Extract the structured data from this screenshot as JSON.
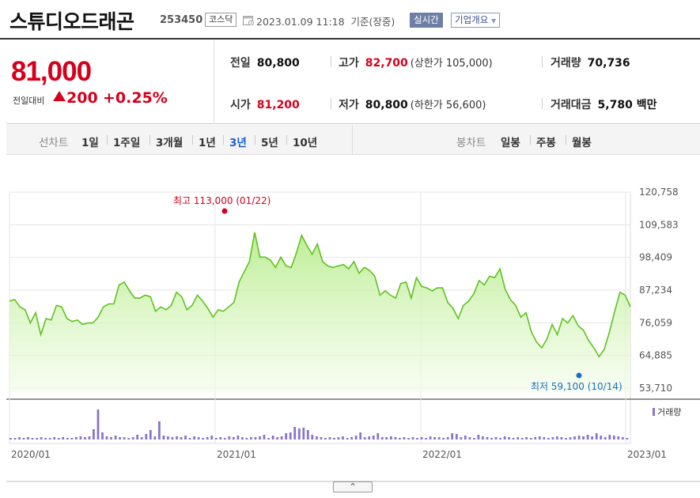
{
  "header": {
    "stock_name": "스튜디오드래곤",
    "stock_code": "253450",
    "market": "코스닥",
    "timestamp": "2023.01.09 11:18",
    "basis": "기준(장중)",
    "realtime_label": "실시간",
    "company_overview_label": "기업개요"
  },
  "summary": {
    "current_price": "81,000",
    "change_label": "전일대비",
    "change_value": "200",
    "change_pct": "+0.25%",
    "prev_close_label": "전일",
    "prev_close": "80,800",
    "open_label": "시가",
    "open": "81,200",
    "high_label": "고가",
    "high": "82,700",
    "upper_limit": "(상한가 105,000)",
    "low_label": "저가",
    "low": "80,800",
    "lower_limit": "(하한가 56,600)",
    "volume_label": "거래량",
    "volume": "70,736",
    "trade_value_label": "거래대금",
    "trade_value": "5,780 백만"
  },
  "period_bar": {
    "line_chart_label": "선차트",
    "line_periods": [
      "1일",
      "1주일",
      "3개월",
      "1년",
      "3년",
      "5년",
      "10년"
    ],
    "active_period": "3년",
    "candle_chart_label": "봉차트",
    "candle_periods": [
      "일봉",
      "주봉",
      "월봉"
    ]
  },
  "colors": {
    "price_up": "#d6001c",
    "line": "#5ec21e",
    "fill": "#c8f0a8",
    "volume": "#8b74c9",
    "low_marker": "#1b6ec2",
    "active_tab": "#1a5bd4"
  },
  "chart_data": {
    "type": "area",
    "y_ticks": [
      "120,758",
      "109,583",
      "98,409",
      "87,234",
      "76,059",
      "64,885",
      "53,710"
    ],
    "ylim": [
      53710,
      120758
    ],
    "x_ticks": [
      "2020/01",
      "2021/01",
      "2022/01",
      "2023/01"
    ],
    "high_annotation": "최고 113,000 (01/22)",
    "low_annotation": "최저 59,100 (10/14)",
    "volume_label": "거래량",
    "price_series": [
      83500,
      84000,
      81500,
      80500,
      76000,
      79500,
      72000,
      77500,
      77000,
      82000,
      81500,
      77500,
      76500,
      77000,
      75500,
      76000,
      76000,
      78000,
      81500,
      82500,
      82500,
      89000,
      90000,
      87000,
      84500,
      84500,
      85500,
      85000,
      80000,
      81500,
      80500,
      82000,
      86500,
      85000,
      80500,
      82000,
      85500,
      83500,
      81000,
      78000,
      80500,
      80000,
      81500,
      83000,
      90000,
      93500,
      97000,
      107000,
      98500,
      98500,
      97500,
      95000,
      98500,
      95500,
      95000,
      100000,
      106000,
      102500,
      99500,
      103000,
      97000,
      95500,
      95000,
      95500,
      96000,
      94500,
      97000,
      93000,
      95000,
      94000,
      92000,
      85500,
      87000,
      85500,
      84500,
      89500,
      90000,
      84500,
      91500,
      88500,
      88000,
      87000,
      88000,
      88000,
      83000,
      81000,
      77500,
      82000,
      83500,
      86000,
      90500,
      89000,
      92000,
      91500,
      94500,
      87500,
      84000,
      82000,
      78000,
      79500,
      73000,
      69500,
      67500,
      70500,
      75500,
      72000,
      77500,
      76000,
      78500,
      75000,
      73500,
      70000,
      67500,
      64500,
      67000,
      73000,
      80000,
      86500,
      85500,
      81500
    ]
  }
}
